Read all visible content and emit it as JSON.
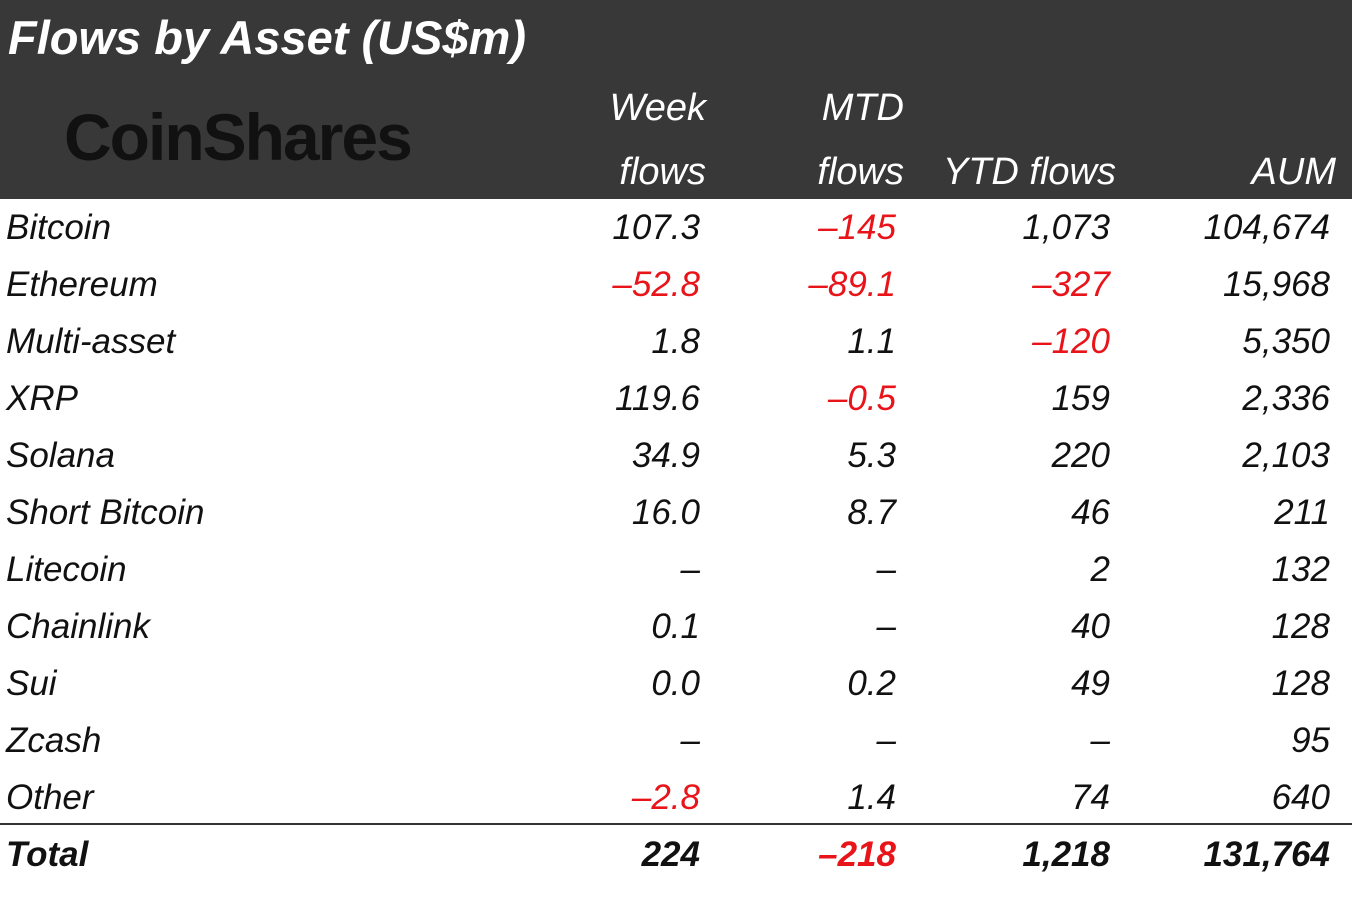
{
  "chart_data": {
    "type": "table",
    "title": "Flows by Asset (US$m)",
    "logo_text": "CoinShares",
    "columns": [
      {
        "key": "week",
        "line1": "Week",
        "line2": "flows"
      },
      {
        "key": "mtd",
        "line1": "MTD",
        "line2": "flows"
      },
      {
        "key": "ytd",
        "line1": "",
        "line2": "YTD flows"
      },
      {
        "key": "aum",
        "line1": "",
        "line2": "AUM"
      }
    ],
    "rows": [
      {
        "asset": "Bitcoin",
        "week": "107.3",
        "mtd": "-145",
        "ytd": "1,073",
        "aum": "104,674"
      },
      {
        "asset": "Ethereum",
        "week": "-52.8",
        "mtd": "-89.1",
        "ytd": "-327",
        "aum": "15,968"
      },
      {
        "asset": "Multi-asset",
        "week": "1.8",
        "mtd": "1.1",
        "ytd": "-120",
        "aum": "5,350"
      },
      {
        "asset": "XRP",
        "week": "119.6",
        "mtd": "-0.5",
        "ytd": "159",
        "aum": "2,336"
      },
      {
        "asset": "Solana",
        "week": "34.9",
        "mtd": "5.3",
        "ytd": "220",
        "aum": "2,103"
      },
      {
        "asset": "Short Bitcoin",
        "week": "16.0",
        "mtd": "8.7",
        "ytd": "46",
        "aum": "211"
      },
      {
        "asset": "Litecoin",
        "week": "-",
        "mtd": "-",
        "ytd": "2",
        "aum": "132"
      },
      {
        "asset": "Chainlink",
        "week": "0.1",
        "mtd": "-",
        "ytd": "40",
        "aum": "128"
      },
      {
        "asset": "Sui",
        "week": "0.0",
        "mtd": "0.2",
        "ytd": "49",
        "aum": "128"
      },
      {
        "asset": "Zcash",
        "week": "-",
        "mtd": "-",
        "ytd": "-",
        "aum": "95"
      },
      {
        "asset": "Other",
        "week": "-2.8",
        "mtd": "1.4",
        "ytd": "74",
        "aum": "640"
      }
    ],
    "total": {
      "asset": "Total",
      "week": "224",
      "mtd": "-218",
      "ytd": "1,218",
      "aum": "131,764"
    },
    "colors": {
      "header_bg": "#383838",
      "header_text": "#ffffff",
      "negative": "#e8141a",
      "text": "#111111"
    }
  }
}
